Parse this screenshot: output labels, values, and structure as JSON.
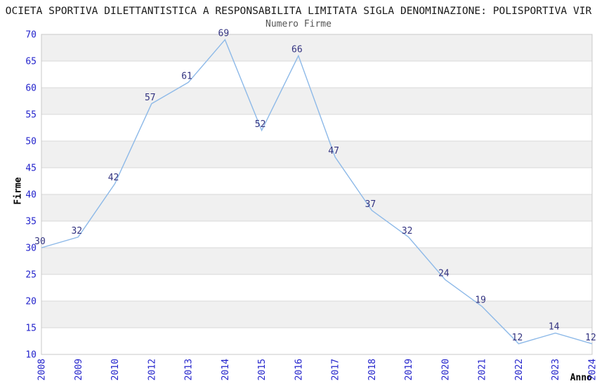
{
  "chart_data": {
    "type": "line",
    "title": "OCIETA SPORTIVA DILETTANTISTICA A RESPONSABILITA LIMITATA SIGLA DENOMINAZIONE: POLISPORTIVA VIR",
    "subtitle": "Numero Firme",
    "xlabel": "Anno",
    "ylabel": "Firme",
    "categories": [
      "2008",
      "2009",
      "2010",
      "2012",
      "2013",
      "2014",
      "2015",
      "2016",
      "2017",
      "2018",
      "2019",
      "2020",
      "2021",
      "2022",
      "2023",
      "2024"
    ],
    "series": [
      {
        "name": "Numero Firme",
        "values": [
          30,
          32,
          42,
          57,
          61,
          69,
          52,
          66,
          47,
          37,
          32,
          24,
          19,
          12,
          14,
          12
        ]
      }
    ],
    "point_labels_shown": true,
    "ylim": [
      10,
      70
    ],
    "ytick_step": 5,
    "grid": "horizontal",
    "background_bands": "alternating",
    "legend": "none",
    "colors": {
      "line": "#8db9e8",
      "tick_label": "#2424cc",
      "point_label": "#333380",
      "band": "#f0f0f0",
      "gridline": "#d9d9d9",
      "plot_border": "#c8c8c8",
      "title": "#1a1a1a",
      "subtitle": "#555555",
      "axis_label": "#000000"
    }
  }
}
